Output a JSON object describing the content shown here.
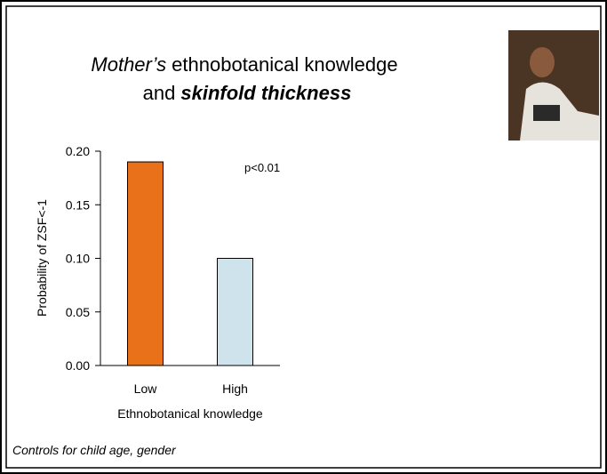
{
  "chart_data": {
    "type": "bar",
    "title": {
      "line1_italic": "Mother’s",
      "line1_rest": "ethnobotanical knowledge",
      "line2_plain": "and",
      "line2_bold_italic": "skinfold thickness"
    },
    "categories": [
      "Low",
      "High"
    ],
    "values": [
      0.19,
      0.1
    ],
    "colors": [
      "#e8711a",
      "#cfe3ec"
    ],
    "ylim": [
      0,
      0.2
    ],
    "yticks": [
      {
        "value": 0,
        "label": "0.00"
      },
      {
        "value": 0.05,
        "label": "0.05"
      },
      {
        "value": 0.1,
        "label": "0.10"
      },
      {
        "value": 0.15,
        "label": "0.15"
      },
      {
        "value": 0.2,
        "label": "0.20"
      }
    ],
    "y_label": "Probability of ZSF<-1",
    "x_label": "Ethnobotanical knowledge",
    "annotation": "p<0.01",
    "footnote": "Controls for child age, gender",
    "grid": false
  }
}
